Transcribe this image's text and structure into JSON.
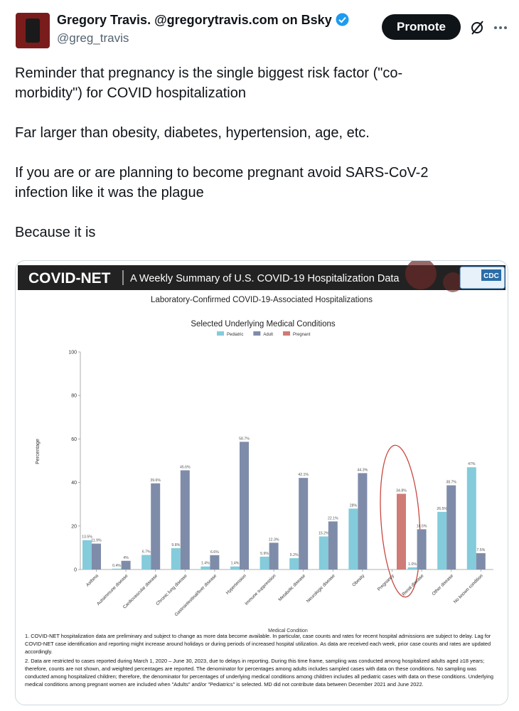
{
  "tweet": {
    "author_name": "Gregory Travis. @gregorytravis.com on Bsky",
    "handle": "@greg_travis",
    "button": "Promote",
    "paragraphs": [
      "Reminder that pregnancy is the single biggest risk factor (\"co-morbidity\") for COVID hospitalization",
      "Far larger than obesity, diabetes, hypertension, age, etc.",
      "If you are or are planning to become pregnant avoid SARS-CoV-2 infection like it was the plague",
      "Because it is"
    ]
  },
  "chart_data": {
    "type": "bar",
    "header": "COVID-NET",
    "header_subtitle": "A Weekly Summary of U.S. COVID-19 Hospitalization Data",
    "logo_text": "CDC",
    "title": "Laboratory-Confirmed COVID-19-Associated Hospitalizations",
    "subtitle": "Selected Underlying Medical Conditions",
    "ylabel": "Percentage",
    "xlabel": "Medical Condition",
    "categories": [
      "Asthma",
      "Autoimmune disease",
      "Cardiovascular disease",
      "Chronic lung disease",
      "Gastrointestinal/liver disease",
      "Hypertension",
      "Immune suppression",
      "Metabolic disease",
      "Neurologic disease",
      "Obesity",
      "Pregnancy",
      "Renal disease",
      "Other disease",
      "No known condition"
    ],
    "series": [
      {
        "name": "Pediatric",
        "color": "#84cbdb",
        "values": [
          13.5,
          0.4,
          6.7,
          9.8,
          1.4,
          1.4,
          5.9,
          5.2,
          15.2,
          28,
          null,
          1.0,
          26.5,
          47
        ],
        "value_labels": [
          "13.5%",
          "0.4%",
          "6.7%",
          "9.8%",
          "1.4%",
          "1.4%",
          "5.9%",
          "5.2%",
          "15.2%",
          "28%",
          null,
          "1.0%",
          "26.5%",
          "47%"
        ]
      },
      {
        "name": "Adult",
        "color": "#7f8ca9",
        "values": [
          11.9,
          4,
          39.6,
          45.6,
          6.6,
          58.7,
          12.3,
          42.1,
          22.1,
          44.3,
          null,
          18.5,
          38.7,
          7.5
        ],
        "value_labels": [
          "11.9%",
          "4%",
          "39.6%",
          "45.6%",
          "6.6%",
          "58.7%",
          "12.3%",
          "42.1%",
          "22.1%",
          "44.3%",
          null,
          "18.5%",
          "38.7%",
          "7.5%"
        ]
      },
      {
        "name": "Pregnant",
        "color": "#cf7b76",
        "values": [
          null,
          null,
          null,
          null,
          null,
          null,
          null,
          null,
          null,
          null,
          34.8,
          null,
          null,
          null
        ],
        "value_labels": [
          null,
          null,
          null,
          null,
          null,
          null,
          null,
          null,
          null,
          null,
          "34.8%",
          null,
          null,
          null
        ]
      }
    ],
    "ylim": [
      0,
      100
    ],
    "yticks": [
      0,
      20,
      40,
      60,
      80,
      100
    ],
    "grid": false,
    "footnotes": [
      "1. COVID-NET hospitalization data are preliminary and subject to change as more data become available. In particular, case counts and rates for recent hospital admissions are subject to delay. Lag for COVID-NET case identification and reporting might increase around holidays or during periods of increased hospital utilization. As data are received each week, prior case counts and rates are updated accordingly.",
      "2. Data are restricted to cases reported during March 1, 2020 – June 30, 2023, due to delays in reporting. During this time frame, sampling was conducted among hospitalized adults aged ≥18 years; therefore, counts are not shown, and weighted percentages are reported. The denominator for percentages among adults includes sampled cases with data on these conditions. No sampling was conducted among hospitalized children; therefore, the denominator for percentages of underlying medical conditions among children includes all pediatric cases with data on these conditions. Underlying medical conditions among pregnant women are included when \"Adults\" and/or \"Pediatrics\" is selected. MD did not contribute data between December 2021 and June 2022."
    ]
  }
}
